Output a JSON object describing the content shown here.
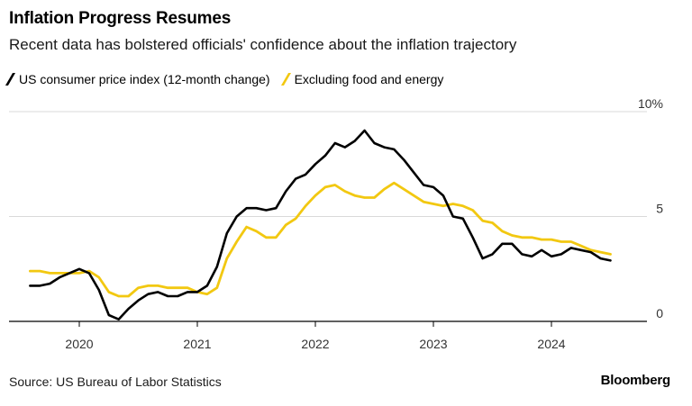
{
  "title": "Inflation Progress Resumes",
  "subtitle": "Recent data has bolstered officials' confidence about the inflation trajectory",
  "source": "Source: US Bureau of Labor Statistics",
  "brand": "Bloomberg",
  "colors": {
    "cpi": "#000000",
    "core": "#f2c811",
    "grid": "#d9d9d9",
    "axis": "#000000"
  },
  "chart_data": {
    "type": "line",
    "title": "Inflation Progress Resumes",
    "subtitle": "Recent data has bolstered officials' confidence about the inflation trajectory",
    "xlabel": "",
    "ylabel": "",
    "ylim": [
      0,
      10
    ],
    "y_ticks": [
      0,
      5,
      10
    ],
    "y_tick_labels": [
      "0",
      "5",
      "10%"
    ],
    "x_ticks": [
      "2020",
      "2021",
      "2022",
      "2023",
      "2024"
    ],
    "grid": true,
    "legend_position": "top-left",
    "x": [
      "2019-08",
      "2019-09",
      "2019-10",
      "2019-11",
      "2019-12",
      "2020-01",
      "2020-02",
      "2020-03",
      "2020-04",
      "2020-05",
      "2020-06",
      "2020-07",
      "2020-08",
      "2020-09",
      "2020-10",
      "2020-11",
      "2020-12",
      "2021-01",
      "2021-02",
      "2021-03",
      "2021-04",
      "2021-05",
      "2021-06",
      "2021-07",
      "2021-08",
      "2021-09",
      "2021-10",
      "2021-11",
      "2021-12",
      "2022-01",
      "2022-02",
      "2022-03",
      "2022-04",
      "2022-05",
      "2022-06",
      "2022-07",
      "2022-08",
      "2022-09",
      "2022-10",
      "2022-11",
      "2022-12",
      "2023-01",
      "2023-02",
      "2023-03",
      "2023-04",
      "2023-05",
      "2023-06",
      "2023-07",
      "2023-08",
      "2023-09",
      "2023-10",
      "2023-11",
      "2023-12",
      "2024-01",
      "2024-02",
      "2024-03",
      "2024-04",
      "2024-05",
      "2024-06",
      "2024-07"
    ],
    "series": [
      {
        "name": "US consumer price index (12-month change)",
        "color": "#000000",
        "values": [
          1.7,
          1.7,
          1.8,
          2.1,
          2.3,
          2.5,
          2.3,
          1.5,
          0.3,
          0.1,
          0.6,
          1.0,
          1.3,
          1.4,
          1.2,
          1.2,
          1.4,
          1.4,
          1.7,
          2.6,
          4.2,
          5.0,
          5.4,
          5.4,
          5.3,
          5.4,
          6.2,
          6.8,
          7.0,
          7.5,
          7.9,
          8.5,
          8.3,
          8.6,
          9.1,
          8.5,
          8.3,
          8.2,
          7.7,
          7.1,
          6.5,
          6.4,
          6.0,
          5.0,
          4.9,
          4.0,
          3.0,
          3.2,
          3.7,
          3.7,
          3.2,
          3.1,
          3.4,
          3.1,
          3.2,
          3.5,
          3.4,
          3.3,
          3.0,
          2.9
        ]
      },
      {
        "name": "Excluding food and energy",
        "color": "#f2c811",
        "values": [
          2.4,
          2.4,
          2.3,
          2.3,
          2.3,
          2.3,
          2.4,
          2.1,
          1.4,
          1.2,
          1.2,
          1.6,
          1.7,
          1.7,
          1.6,
          1.6,
          1.6,
          1.4,
          1.3,
          1.6,
          3.0,
          3.8,
          4.5,
          4.3,
          4.0,
          4.0,
          4.6,
          4.9,
          5.5,
          6.0,
          6.4,
          6.5,
          6.2,
          6.0,
          5.9,
          5.9,
          6.3,
          6.6,
          6.3,
          6.0,
          5.7,
          5.6,
          5.5,
          5.6,
          5.5,
          5.3,
          4.8,
          4.7,
          4.3,
          4.1,
          4.0,
          4.0,
          3.9,
          3.9,
          3.8,
          3.8,
          3.6,
          3.4,
          3.3,
          3.2
        ]
      }
    ]
  }
}
